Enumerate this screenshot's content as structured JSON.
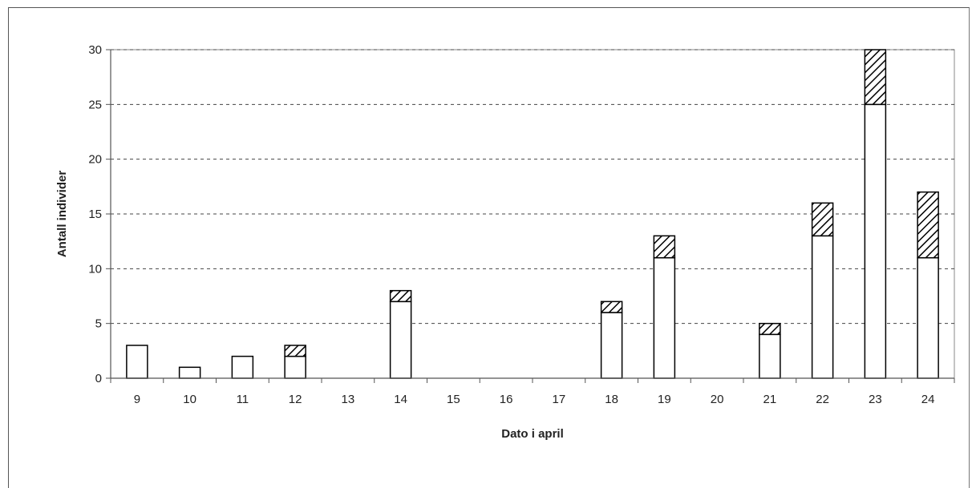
{
  "chart_data": {
    "type": "bar",
    "stacked": true,
    "categories": [
      "9",
      "10",
      "11",
      "12",
      "13",
      "14",
      "15",
      "16",
      "17",
      "18",
      "19",
      "20",
      "21",
      "22",
      "23",
      "24"
    ],
    "series": [
      {
        "values": [
          3,
          1,
          2,
          2,
          0,
          7,
          0,
          0,
          0,
          6,
          11,
          0,
          4,
          13,
          25,
          11
        ],
        "fill": "white"
      },
      {
        "values": [
          0,
          0,
          0,
          1,
          0,
          1,
          0,
          0,
          0,
          1,
          2,
          0,
          1,
          3,
          5,
          6
        ],
        "fill": "hatched"
      }
    ],
    "xlabel": "Dato i april",
    "ylabel": "Antall individer",
    "ylim": [
      0,
      30
    ],
    "yticks": [
      0,
      5,
      10,
      15,
      20,
      25,
      30
    ],
    "grid": "horizontal-dashed",
    "legend": "none",
    "colors": {
      "bar_stroke": "#000000",
      "grid": "#444444",
      "axis": "#555555"
    }
  }
}
